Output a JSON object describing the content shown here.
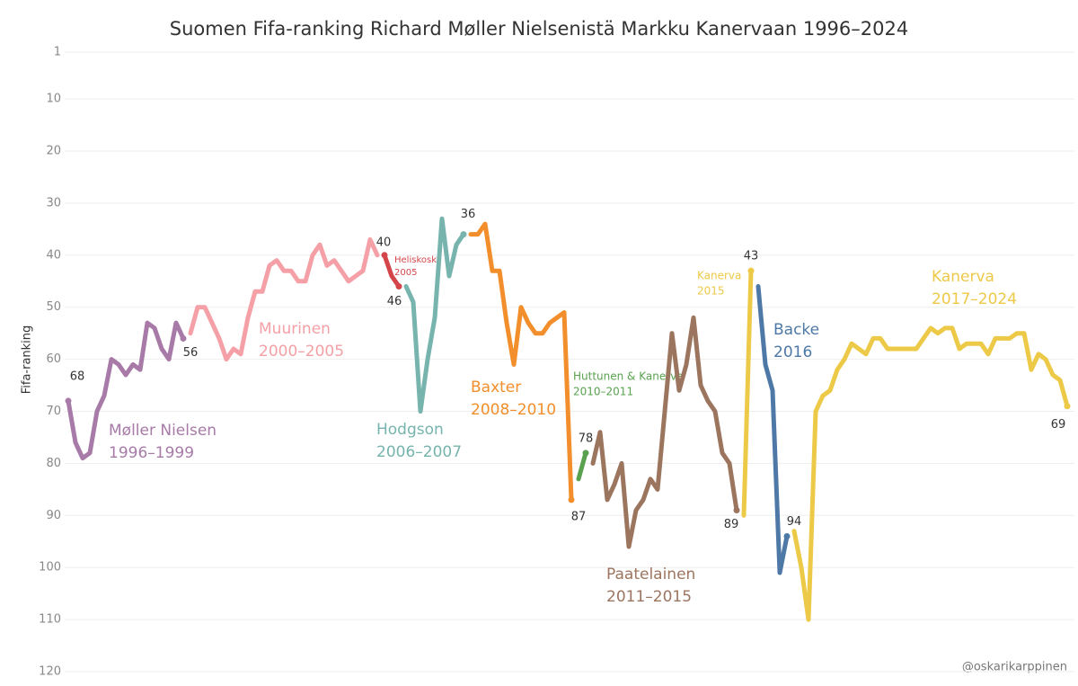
{
  "chart_data": {
    "type": "line",
    "title": "Suomen Fifa-ranking Richard Møller Nielsenistä Markku Kanervaan 1996–2024",
    "y_label": "Fifa-ranking",
    "ylim": [
      1,
      120
    ],
    "y_inverted": true,
    "yticks": [
      1,
      10,
      20,
      30,
      40,
      50,
      60,
      70,
      80,
      90,
      100,
      110,
      120
    ],
    "grid": true,
    "credit": "@oskarikarppinen",
    "series": [
      {
        "name": "Møller Nielsen",
        "period": "1996–1999",
        "color": "#a87aa8",
        "values": [
          68,
          76,
          79,
          78,
          70,
          67,
          60,
          61,
          63,
          61,
          62,
          53,
          54,
          58,
          60,
          53,
          56
        ]
      },
      {
        "name": "Muurinen",
        "period": "2000–2005",
        "color": "#f4a0a6",
        "values": [
          55,
          50,
          50,
          53,
          56,
          60,
          58,
          59,
          52,
          47,
          47,
          42,
          41,
          43,
          43,
          45,
          45,
          40,
          38,
          42,
          41,
          43,
          45,
          44,
          43,
          37,
          40
        ]
      },
      {
        "name": "Heliskoski",
        "period": "2005",
        "color": "#d4454a",
        "values": [
          40,
          44,
          46
        ]
      },
      {
        "name": "Hodgson",
        "period": "2006–2007",
        "color": "#76b4ad",
        "values": [
          46,
          49,
          70,
          60,
          52,
          33,
          44,
          38,
          36
        ]
      },
      {
        "name": "Baxter",
        "period": "2008–2010",
        "color": "#f28e2b",
        "values": [
          36,
          36,
          34,
          43,
          43,
          53,
          61,
          50,
          53,
          55,
          55,
          53,
          52,
          51,
          87
        ]
      },
      {
        "name": "Huttunen & Kanerva",
        "period": "2010–2011",
        "color": "#59a14f",
        "values": [
          83,
          78
        ]
      },
      {
        "name": "Paatelainen",
        "period": "2011–2015",
        "color": "#9c755f",
        "values": [
          80,
          74,
          87,
          84,
          80,
          96,
          89,
          87,
          83,
          85,
          70,
          55,
          66,
          61,
          52,
          65,
          68,
          70,
          78,
          80,
          89
        ]
      },
      {
        "name": "Kanerva",
        "period": "2015",
        "color": "#edc948",
        "values": [
          90,
          43
        ]
      },
      {
        "name": "Backe",
        "period": "2016",
        "color": "#4e79a7",
        "values": [
          46,
          61,
          66,
          101,
          94
        ]
      },
      {
        "name": "Kanerva",
        "period": "2017–2024",
        "color": "#edc948",
        "values": [
          93,
          100,
          110,
          70,
          67,
          66,
          62,
          60,
          57,
          58,
          59,
          56,
          56,
          58,
          58,
          58,
          58,
          58,
          56,
          54,
          55,
          54,
          54,
          58,
          57,
          57,
          57,
          59,
          56,
          56,
          56,
          55,
          55,
          62,
          59,
          60,
          63,
          64,
          69
        ]
      }
    ]
  }
}
